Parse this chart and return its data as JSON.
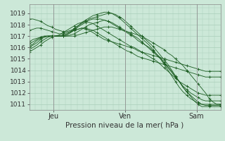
{
  "xlabel": "Pression niveau de la mer( hPa )",
  "background_color": "#cce8d8",
  "grid_color": "#aacfba",
  "line_color": "#1a5c20",
  "ylim": [
    1010.5,
    1019.8
  ],
  "yticks": [
    1011,
    1012,
    1013,
    1014,
    1015,
    1016,
    1017,
    1018,
    1019
  ],
  "day_labels": [
    "Jeu",
    "Ven",
    "Sam"
  ],
  "day_positions": [
    8,
    32,
    56
  ],
  "xlim": [
    0,
    64
  ],
  "series": [
    [
      1015.6,
      1015.8,
      1016.0,
      1016.2,
      1016.5,
      1016.7,
      1016.9,
      1017.0,
      1017.0,
      1017.0,
      1017.0,
      1017.0,
      1017.0,
      1017.1,
      1017.2,
      1017.3,
      1017.4,
      1017.5,
      1017.6,
      1017.7,
      1017.8,
      1017.8,
      1017.8,
      1017.7,
      1017.6,
      1017.5,
      1017.4,
      1017.3,
      1017.2,
      1017.1,
      1017.0,
      1016.8,
      1016.6,
      1016.4,
      1016.2,
      1016.0,
      1015.8,
      1015.5,
      1015.3,
      1015.0,
      1014.7,
      1014.4,
      1014.0,
      1013.6,
      1013.2,
      1012.8,
      1012.4,
      1012.0,
      1011.5,
      1011.2,
      1011.0,
      1011.0
    ],
    [
      1015.8,
      1016.0,
      1016.2,
      1016.5,
      1016.7,
      1016.9,
      1017.0,
      1017.0,
      1017.0,
      1017.0,
      1017.0,
      1017.1,
      1017.2,
      1017.4,
      1017.6,
      1017.8,
      1018.0,
      1018.1,
      1018.2,
      1018.3,
      1018.4,
      1018.3,
      1018.2,
      1018.0,
      1017.8,
      1017.6,
      1017.4,
      1017.2,
      1017.0,
      1016.8,
      1016.5,
      1016.2,
      1016.0,
      1015.7,
      1015.4,
      1015.1,
      1014.7,
      1014.3,
      1013.9,
      1013.4,
      1013.0,
      1012.5,
      1012.1,
      1011.7,
      1011.3,
      1011.0,
      1010.8,
      1010.8,
      1010.8,
      1010.8,
      1010.8,
      1010.8
    ],
    [
      1016.0,
      1016.2,
      1016.4,
      1016.7,
      1016.9,
      1017.0,
      1017.0,
      1017.0,
      1017.0,
      1017.0,
      1017.1,
      1017.3,
      1017.5,
      1017.8,
      1018.0,
      1018.2,
      1018.5,
      1018.6,
      1018.7,
      1018.8,
      1018.9,
      1019.0,
      1019.0,
      1018.9,
      1018.7,
      1018.5,
      1018.2,
      1017.9,
      1017.6,
      1017.3,
      1017.0,
      1016.7,
      1016.4,
      1016.1,
      1015.7,
      1015.3,
      1014.9,
      1014.5,
      1014.0,
      1013.5,
      1013.0,
      1012.5,
      1012.1,
      1011.8,
      1011.5,
      1011.2,
      1011.0,
      1010.9,
      1010.9,
      1010.9,
      1010.9,
      1010.9
    ],
    [
      1016.1,
      1016.3,
      1016.6,
      1016.8,
      1016.9,
      1017.0,
      1017.0,
      1017.0,
      1017.0,
      1017.0,
      1017.1,
      1017.3,
      1017.6,
      1017.9,
      1018.2,
      1018.4,
      1018.6,
      1018.8,
      1018.9,
      1019.0,
      1019.1,
      1019.1,
      1019.0,
      1018.8,
      1018.6,
      1018.3,
      1018.0,
      1017.7,
      1017.4,
      1017.1,
      1016.8,
      1016.5,
      1016.2,
      1015.8,
      1015.4,
      1015.0,
      1014.5,
      1014.0,
      1013.5,
      1013.0,
      1012.5,
      1012.1,
      1011.8,
      1011.5,
      1011.3,
      1011.1,
      1011.0,
      1011.0,
      1011.0,
      1011.0,
      1011.0,
      1011.0
    ],
    [
      1016.3,
      1016.5,
      1016.7,
      1016.9,
      1017.0,
      1017.0,
      1017.0,
      1017.0,
      1017.0,
      1017.1,
      1017.2,
      1017.4,
      1017.7,
      1017.9,
      1018.1,
      1018.3,
      1018.4,
      1018.5,
      1018.5,
      1018.5,
      1018.4,
      1018.3,
      1018.1,
      1017.9,
      1017.7,
      1017.5,
      1017.3,
      1017.1,
      1016.9,
      1016.6,
      1016.4,
      1016.2,
      1015.9,
      1015.6,
      1015.3,
      1015.0,
      1014.6,
      1014.2,
      1013.8,
      1013.4,
      1013.0,
      1012.6,
      1012.3,
      1012.0,
      1011.8,
      1011.6,
      1011.4,
      1011.3,
      1011.3,
      1011.3,
      1011.3,
      1011.3
    ],
    [
      1016.5,
      1016.7,
      1016.8,
      1016.9,
      1017.0,
      1017.0,
      1017.0,
      1017.0,
      1017.1,
      1017.3,
      1017.5,
      1017.7,
      1017.9,
      1018.1,
      1018.2,
      1018.3,
      1018.2,
      1018.1,
      1017.9,
      1017.7,
      1017.5,
      1017.3,
      1017.1,
      1016.9,
      1016.7,
      1016.5,
      1016.3,
      1016.1,
      1016.0,
      1015.8,
      1015.6,
      1015.4,
      1015.2,
      1015.0,
      1014.8,
      1014.5,
      1014.2,
      1013.9,
      1013.6,
      1013.3,
      1013.0,
      1012.8,
      1012.6,
      1012.4,
      1012.2,
      1012.0,
      1011.9,
      1011.8,
      1011.8,
      1011.8,
      1011.8,
      1011.8
    ],
    [
      1017.5,
      1017.6,
      1017.7,
      1017.7,
      1017.6,
      1017.5,
      1017.4,
      1017.3,
      1017.2,
      1017.2,
      1017.3,
      1017.4,
      1017.5,
      1017.6,
      1017.7,
      1017.7,
      1017.6,
      1017.5,
      1017.3,
      1017.1,
      1016.9,
      1016.7,
      1016.5,
      1016.3,
      1016.1,
      1015.9,
      1015.7,
      1015.6,
      1015.4,
      1015.2,
      1015.1,
      1015.0,
      1014.9,
      1014.8,
      1014.7,
      1014.6,
      1014.5,
      1014.4,
      1014.3,
      1014.2,
      1014.1,
      1014.0,
      1013.9,
      1013.8,
      1013.7,
      1013.6,
      1013.5,
      1013.4,
      1013.4,
      1013.4,
      1013.4,
      1013.4
    ],
    [
      1018.5,
      1018.5,
      1018.4,
      1018.3,
      1018.1,
      1017.9,
      1017.8,
      1017.6,
      1017.5,
      1017.4,
      1017.4,
      1017.5,
      1017.6,
      1017.6,
      1017.7,
      1017.6,
      1017.5,
      1017.3,
      1017.1,
      1016.9,
      1016.7,
      1016.6,
      1016.5,
      1016.4,
      1016.3,
      1016.2,
      1016.1,
      1016.0,
      1015.9,
      1015.7,
      1015.6,
      1015.5,
      1015.4,
      1015.3,
      1015.2,
      1015.1,
      1015.0,
      1014.9,
      1014.8,
      1014.7,
      1014.6,
      1014.5,
      1014.4,
      1014.3,
      1014.2,
      1014.1,
      1014.0,
      1013.9,
      1013.9,
      1013.9,
      1013.9,
      1013.9
    ]
  ]
}
